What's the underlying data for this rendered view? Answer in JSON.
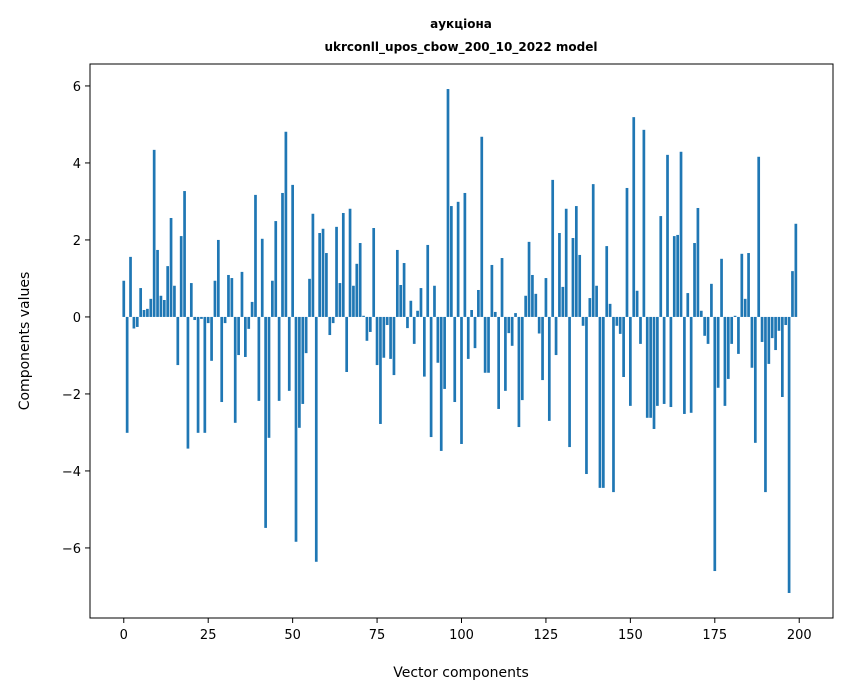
{
  "chart_data": {
    "type": "bar",
    "title_lines": [
      "аукціона",
      "ukrconll_upos_cbow_200_10_2022 model"
    ],
    "xlabel": "Vector components",
    "ylabel": "Components values",
    "xlim": [
      -10,
      210
    ],
    "ylim": [
      -7.82,
      6.57
    ],
    "xticks": [
      0,
      25,
      50,
      75,
      100,
      125,
      150,
      175,
      200
    ],
    "yticks": [
      -6,
      -4,
      -2,
      0,
      2,
      4,
      6
    ],
    "ytick_labels": [
      "−6",
      "−4",
      "−2",
      "0",
      "2",
      "4",
      "6"
    ],
    "grid": false,
    "bar_color": "#1f77b4",
    "x_start": 0,
    "values": [
      0.94,
      -3.01,
      1.56,
      -0.3,
      -0.26,
      0.75,
      0.18,
      0.21,
      0.47,
      4.34,
      1.74,
      0.55,
      0.44,
      1.32,
      2.57,
      0.81,
      -1.25,
      2.1,
      3.27,
      -3.42,
      0.88,
      -0.08,
      -3.01,
      -0.05,
      -3.01,
      -0.16,
      -1.14,
      0.94,
      2.0,
      -2.21,
      -0.16,
      1.09,
      1.01,
      -2.75,
      -0.99,
      1.17,
      -1.04,
      -0.31,
      0.39,
      3.17,
      -2.18,
      2.03,
      -5.48,
      -3.14,
      0.94,
      2.49,
      -2.18,
      3.22,
      4.81,
      -1.92,
      3.43,
      -5.84,
      -2.88,
      -2.26,
      -0.94,
      0.99,
      2.68,
      -6.36,
      2.18,
      2.29,
      1.66,
      -0.47,
      -0.16,
      2.34,
      0.88,
      2.7,
      -1.43,
      2.81,
      0.81,
      1.38,
      1.92,
      0.03,
      -0.62,
      -0.39,
      2.31,
      -1.25,
      -2.78,
      -1.06,
      -0.21,
      -1.09,
      -1.51,
      1.74,
      0.83,
      1.4,
      -0.29,
      0.42,
      -0.7,
      0.16,
      0.75,
      -1.55,
      1.87,
      -3.12,
      0.81,
      -1.19,
      -3.48,
      -1.87,
      5.92,
      2.88,
      -2.21,
      2.99,
      -3.3,
      3.22,
      -1.09,
      0.18,
      -0.81,
      0.7,
      4.68,
      -1.45,
      -1.45,
      1.35,
      0.13,
      -2.39,
      1.53,
      -1.92,
      -0.42,
      -0.75,
      0.1,
      -2.86,
      -2.16,
      0.55,
      1.95,
      1.09,
      0.6,
      -0.43,
      -1.64,
      1.01,
      -2.7,
      3.56,
      -0.99,
      2.18,
      0.78,
      2.81,
      -3.38,
      2.05,
      2.88,
      1.61,
      -0.23,
      -4.08,
      0.49,
      3.45,
      0.81,
      -4.44,
      -4.44,
      1.84,
      0.34,
      -4.55,
      -0.23,
      -0.44,
      -1.56,
      3.35,
      -2.31,
      5.19,
      0.68,
      -0.7,
      4.86,
      -2.62,
      -2.62,
      -2.91,
      -2.31,
      2.62,
      -2.26,
      4.21,
      -2.34,
      2.1,
      2.13,
      4.29,
      -2.52,
      0.62,
      -2.49,
      1.92,
      2.83,
      0.16,
      -0.49,
      -0.7,
      0.86,
      -6.6,
      -1.84,
      1.51,
      -2.31,
      -1.61,
      -0.7,
      0.03,
      -0.96,
      1.64,
      0.47,
      1.66,
      -1.32,
      -3.27,
      4.16,
      -0.65,
      -4.55,
      -1.22,
      -0.55,
      -0.86,
      -0.36,
      -2.08,
      -0.21,
      -7.17,
      1.19,
      2.42
    ]
  }
}
